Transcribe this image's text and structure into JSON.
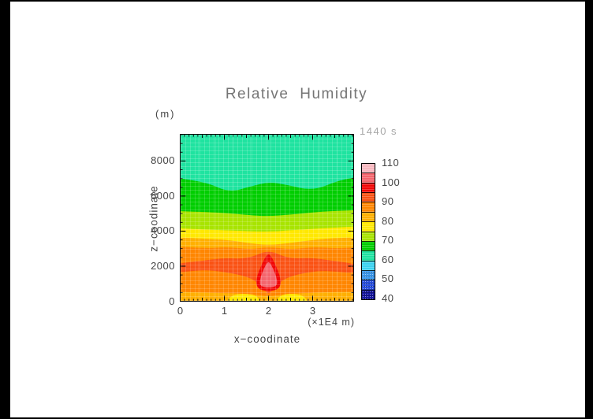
{
  "page": {
    "frame_color": "#000000",
    "canvas_color": "#FFFFFF"
  },
  "colors": {
    "title_text": "#757575",
    "label_text": "#454545",
    "time_text": "#A8A8A8",
    "plot_frame": "#000000",
    "background_band": "#1FE3A0"
  },
  "header": {
    "title": "Relative Humidity",
    "time_label": "1440 s"
  },
  "axes": {
    "y_unit": "(m)",
    "y_label": "z−coodinate",
    "x_label": "x−coodinate",
    "x_unit": "(×1E4 m)",
    "y_tick_labels": [
      "0",
      "2000",
      "4000",
      "6000",
      "8000"
    ],
    "x_tick_labels": [
      "0",
      "1",
      "2",
      "3"
    ]
  },
  "colorbar": {
    "labels_top_to_bottom": [
      "110",
      "100",
      "90",
      "80",
      "70",
      "60",
      "50",
      "40"
    ],
    "colors_top_to_bottom": [
      "#F8B8C0",
      "#F4656D",
      "#F20707",
      "#FA5214",
      "#FF8600",
      "#FFB000",
      "#FFE800",
      "#A8E400",
      "#00CE00",
      "#1FE3A0",
      "#3CD2F0",
      "#3E9CF0",
      "#2A50E0",
      "#1818A0"
    ]
  },
  "chart_data": {
    "type": "filled_contour",
    "title": "Relative Humidity",
    "time": "1440 s",
    "xlabel": "x−coodinate",
    "x_unit": "×1E4 m",
    "ylabel": "z−coodinate",
    "y_unit": "m",
    "x_range": [
      0,
      3.93
    ],
    "z_range": [
      0,
      9520
    ],
    "x_major_ticks": [
      0,
      1,
      2,
      3
    ],
    "x_minor_step": 0.1,
    "z_major_ticks": [
      0,
      2000,
      4000,
      6000,
      8000
    ],
    "z_minor_step": 500,
    "levels": [
      40,
      45,
      50,
      55,
      60,
      65,
      70,
      75,
      80,
      85,
      90,
      95,
      100,
      105,
      110
    ],
    "level_colors": [
      "#1818A0",
      "#2A50E0",
      "#3E9CF0",
      "#3CD2F0",
      "#1FE3A0",
      "#00CE00",
      "#A8E400",
      "#FFE800",
      "#FFB000",
      "#FF8600",
      "#FA5214",
      "#F20707",
      "#F4656D",
      "#F8B8C0"
    ],
    "background_level": "60-65",
    "bands": [
      {
        "kind": "below",
        "level": 65,
        "color": "#00CE00",
        "pts": [
          [
            -0.15,
            7050
          ],
          [
            0.55,
            6850
          ],
          [
            1.1,
            6200
          ],
          [
            1.6,
            6550
          ],
          [
            2.0,
            6800
          ],
          [
            2.4,
            6650
          ],
          [
            3.0,
            6300
          ],
          [
            3.6,
            6900
          ],
          [
            4.05,
            7100
          ]
        ]
      },
      {
        "kind": "below",
        "level": 70,
        "color": "#A8E400",
        "pts": [
          [
            -0.15,
            5150
          ],
          [
            0.9,
            5070
          ],
          [
            1.6,
            4900
          ],
          [
            2.0,
            4850
          ],
          [
            2.5,
            4940
          ],
          [
            3.2,
            5120
          ],
          [
            4.05,
            5200
          ]
        ]
      },
      {
        "kind": "below",
        "level": 75,
        "color": "#FFE800",
        "pts": [
          [
            -0.15,
            4170
          ],
          [
            1.0,
            4050
          ],
          [
            2.0,
            3950
          ],
          [
            2.6,
            4070
          ],
          [
            4.05,
            4270
          ]
        ]
      },
      {
        "kind": "below",
        "level": 80,
        "color": "#FFB000",
        "pts": [
          [
            -0.15,
            3640
          ],
          [
            0.9,
            3560
          ],
          [
            1.5,
            3340
          ],
          [
            2.0,
            3190
          ],
          [
            2.5,
            3330
          ],
          [
            3.3,
            3590
          ],
          [
            4.05,
            3640
          ]
        ]
      },
      {
        "kind": "below",
        "level": 85,
        "color": "#FF8600",
        "pts": [
          [
            -0.15,
            3140
          ],
          [
            0.54,
            3010
          ],
          [
            1.07,
            3100
          ],
          [
            1.6,
            2960
          ],
          [
            2.0,
            3100
          ],
          [
            2.5,
            2960
          ],
          [
            3.04,
            3100
          ],
          [
            3.57,
            3010
          ],
          [
            4.05,
            3100
          ]
        ]
      },
      {
        "kind": "band",
        "level": "90-95",
        "color": "#FA5214",
        "top": [
          [
            -0.15,
            2140
          ],
          [
            0.45,
            2290
          ],
          [
            0.98,
            2470
          ],
          [
            1.43,
            2420
          ],
          [
            1.7,
            2600
          ],
          [
            1.86,
            2780
          ],
          [
            2.0,
            2830
          ],
          [
            2.14,
            2780
          ],
          [
            2.3,
            2600
          ],
          [
            2.55,
            2430
          ],
          [
            3.0,
            2480
          ],
          [
            3.4,
            2330
          ],
          [
            4.05,
            2110
          ]
        ],
        "bottom": [
          [
            -0.15,
            1600
          ],
          [
            0.5,
            1800
          ],
          [
            1.0,
            1680
          ],
          [
            1.5,
            1420
          ],
          [
            1.75,
            1100
          ],
          [
            1.95,
            520
          ],
          [
            2.0,
            430
          ],
          [
            2.05,
            520
          ],
          [
            2.25,
            1100
          ],
          [
            2.5,
            1430
          ],
          [
            2.9,
            1660
          ],
          [
            3.3,
            1750
          ],
          [
            4.05,
            1570
          ]
        ]
      },
      {
        "kind": "below",
        "level": "80-85 surface strip",
        "color": "#FFB000",
        "pts": [
          [
            -0.15,
            540
          ],
          [
            0.5,
            500
          ],
          [
            1.0,
            470
          ],
          [
            1.5,
            430
          ],
          [
            1.8,
            350
          ],
          [
            2.0,
            280
          ],
          [
            2.2,
            350
          ],
          [
            2.5,
            430
          ],
          [
            3.0,
            490
          ],
          [
            3.5,
            530
          ],
          [
            4.05,
            540
          ]
        ]
      },
      {
        "kind": "closed",
        "level": "75-80 surface mound west",
        "color": "#FFE800",
        "pts": [
          [
            1.05,
            -150
          ],
          [
            1.1,
            200
          ],
          [
            1.25,
            390
          ],
          [
            1.45,
            430
          ],
          [
            1.65,
            380
          ],
          [
            1.78,
            200
          ],
          [
            1.82,
            -150
          ]
        ]
      },
      {
        "kind": "closed",
        "level": "75-80 surface mound east",
        "color": "#FFE800",
        "pts": [
          [
            2.16,
            -150
          ],
          [
            2.2,
            180
          ],
          [
            2.35,
            400
          ],
          [
            2.55,
            430
          ],
          [
            2.72,
            370
          ],
          [
            2.85,
            180
          ],
          [
            2.88,
            -150
          ]
        ]
      },
      {
        "kind": "closed",
        "level": "95-100 updraft plume",
        "color": "#F20707",
        "pts": [
          [
            2.0,
            2740
          ],
          [
            2.09,
            2450
          ],
          [
            2.17,
            2000
          ],
          [
            2.25,
            1500
          ],
          [
            2.28,
            1100
          ],
          [
            2.26,
            830
          ],
          [
            2.18,
            640
          ],
          [
            2.0,
            580
          ],
          [
            1.82,
            640
          ],
          [
            1.74,
            830
          ],
          [
            1.72,
            1100
          ],
          [
            1.75,
            1500
          ],
          [
            1.83,
            2000
          ],
          [
            1.91,
            2450
          ]
        ]
      },
      {
        "kind": "closed",
        "level": "100-105 plume core",
        "color": "#F4656D",
        "pts": [
          [
            2.0,
            2290
          ],
          [
            2.07,
            2050
          ],
          [
            2.13,
            1700
          ],
          [
            2.18,
            1350
          ],
          [
            2.2,
            1080
          ],
          [
            2.18,
            900
          ],
          [
            2.1,
            800
          ],
          [
            2.0,
            780
          ],
          [
            1.9,
            800
          ],
          [
            1.82,
            900
          ],
          [
            1.8,
            1080
          ],
          [
            1.82,
            1350
          ],
          [
            1.87,
            1700
          ],
          [
            1.93,
            2050
          ]
        ]
      }
    ]
  }
}
